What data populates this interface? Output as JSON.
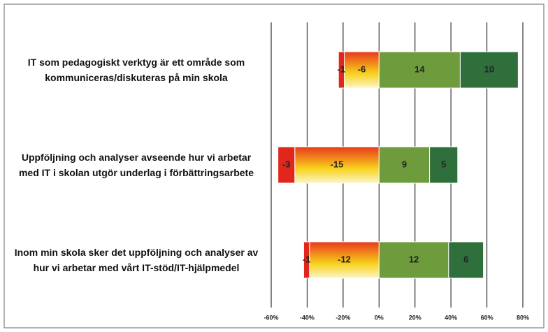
{
  "chart_data": {
    "type": "bar",
    "stacked": "percent",
    "orientation": "horizontal",
    "categories": [
      "IT som pedagogiskt verktyg är ett område som kommuniceras/diskuteras på min skola",
      "Uppföljning och analyser avseende hur vi arbetar med IT i skolan utgör underlag i förbättringsarbete",
      "Inom min skola sker det uppföljning och analyser av hur vi arbetar med vårt IT-stöd/IT-hjälpmedel"
    ],
    "series": [
      {
        "color": "#e2261c",
        "values": [
          -1,
          -3,
          -1
        ]
      },
      {
        "color": "#f2b21e",
        "values": [
          -6,
          -15,
          -12
        ]
      },
      {
        "color": "#6e9b3c",
        "values": [
          14,
          9,
          12
        ]
      },
      {
        "color": "#2f6f3c",
        "values": [
          10,
          5,
          6
        ]
      }
    ],
    "xlim": [
      -60,
      80
    ],
    "xticks": [
      {
        "value": -60,
        "label": "-60%"
      },
      {
        "value": -40,
        "label": "-40%"
      },
      {
        "value": -20,
        "label": "-20%"
      },
      {
        "value": 0,
        "label": "0%"
      },
      {
        "value": 20,
        "label": "20%"
      },
      {
        "value": 40,
        "label": "40%"
      },
      {
        "value": 60,
        "label": "60%"
      },
      {
        "value": 80,
        "label": "80%"
      }
    ],
    "grid": true
  }
}
